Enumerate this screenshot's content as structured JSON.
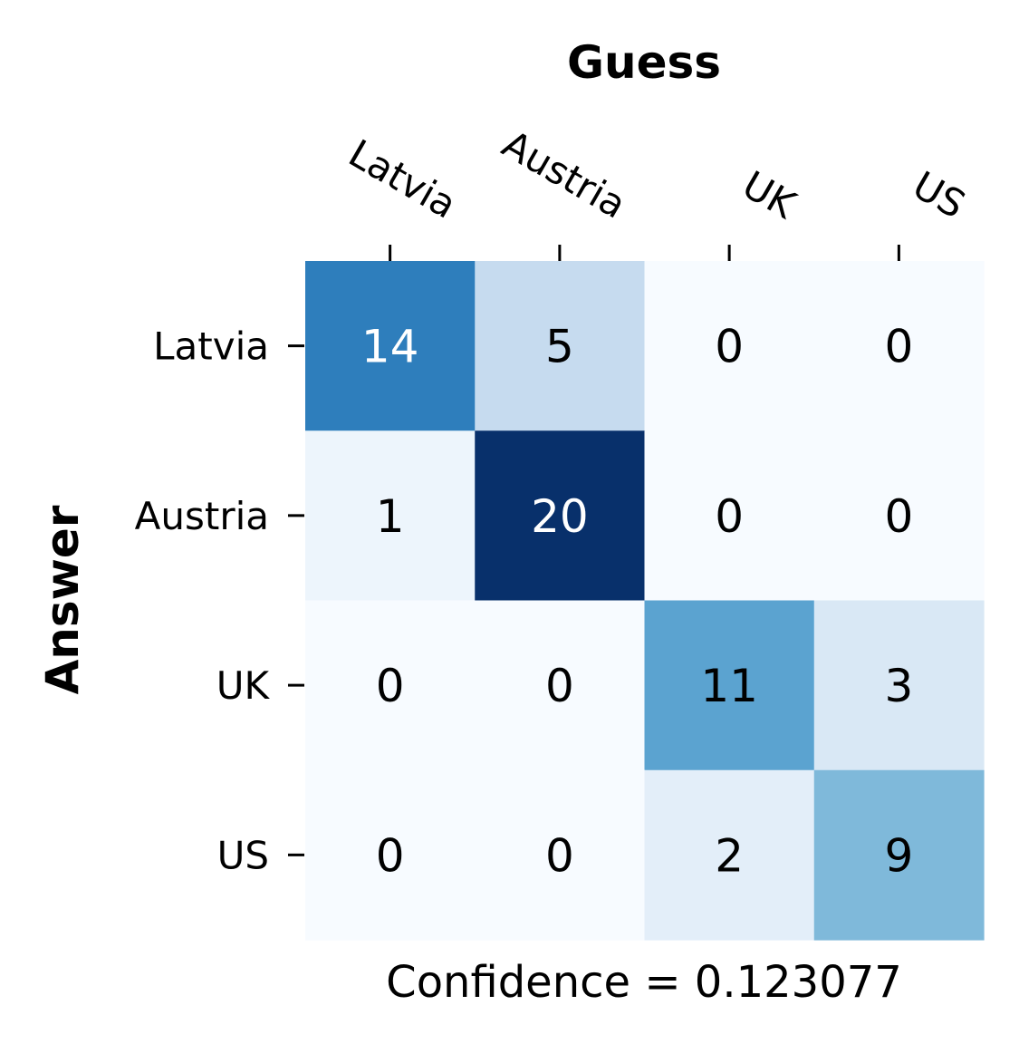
{
  "chart_data": {
    "type": "heatmap",
    "xlabel": "Guess",
    "ylabel": "Answer",
    "x_categories": [
      "Latvia",
      "Austria",
      "UK",
      "US"
    ],
    "y_categories": [
      "Latvia",
      "Austria",
      "UK",
      "US"
    ],
    "values": [
      [
        14,
        5,
        0,
        0
      ],
      [
        1,
        20,
        0,
        0
      ],
      [
        0,
        0,
        11,
        3
      ],
      [
        0,
        0,
        2,
        9
      ]
    ],
    "vmin": 0,
    "vmax": 20,
    "colormap": "Blues",
    "footer": "Confidence = 0.123077"
  }
}
